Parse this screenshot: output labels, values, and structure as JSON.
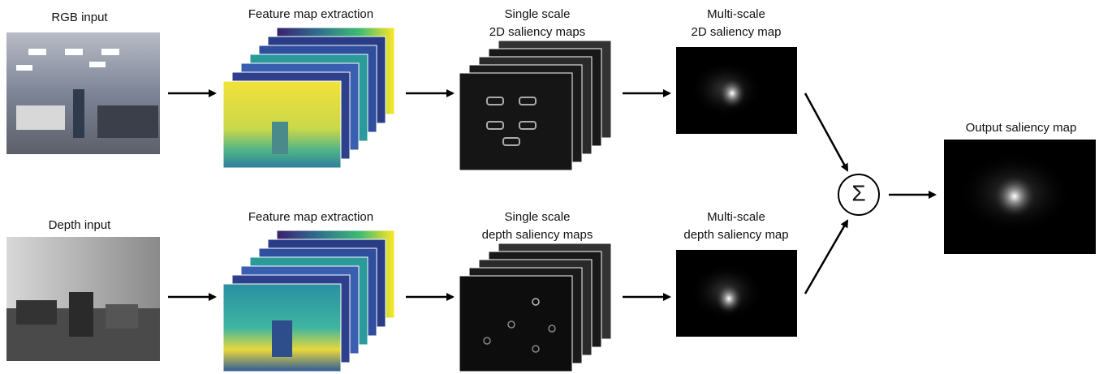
{
  "nodes": [
    {
      "label": [
        "RGB input"
      ]
    },
    {
      "label": [
        "Feature map extraction"
      ]
    },
    {
      "label": [
        "Single scale",
        "2D saliency maps"
      ]
    },
    {
      "label": [
        "Multi-scale",
        "2D saliency map"
      ]
    },
    {
      "label": [
        "Depth input"
      ]
    },
    {
      "label": [
        "Feature map extraction"
      ]
    },
    {
      "label": [
        "Single scale",
        "depth saliency maps"
      ]
    },
    {
      "label": [
        "Multi-scale",
        "depth saliency map"
      ]
    },
    {
      "label": [
        "Output saliency map"
      ]
    },
    {
      "label": [
        "Σ"
      ]
    }
  ]
}
